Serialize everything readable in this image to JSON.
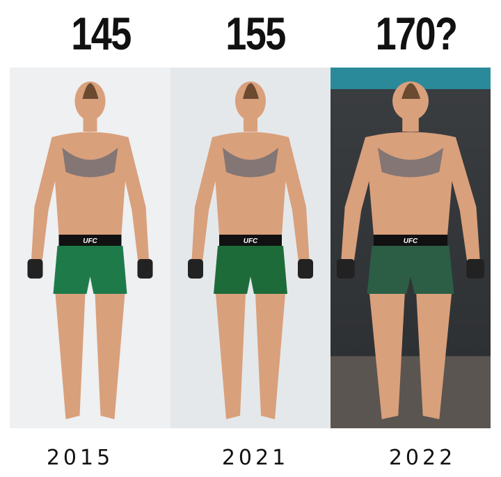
{
  "panels": [
    {
      "weight": "145",
      "year": "2015",
      "background": "#eef0f2",
      "shorts": "#1f7a4a"
    },
    {
      "weight": "155",
      "year": "2021",
      "background": "#e4e8ea",
      "shorts": "#1e6b3a"
    },
    {
      "weight": "170?",
      "year": "2022",
      "background": "#3a3d40",
      "shorts": "#2b5e45"
    }
  ],
  "shorts_logo": "UFC",
  "colors": {
    "skin": "#d9a07c",
    "text": "#111111"
  }
}
